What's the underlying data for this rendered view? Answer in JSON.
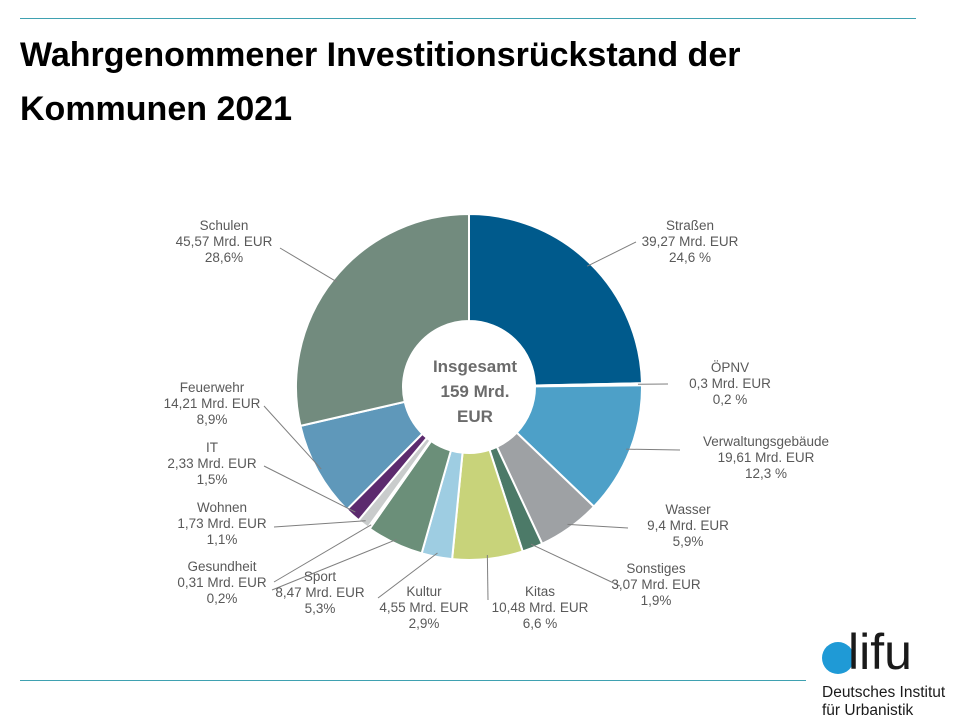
{
  "title": "Wahrgenommener Investitionsrückstand der Kommunen 2021",
  "colors": {
    "rule": "#3fa1b1",
    "leader": "#7f7f7f",
    "logo_dot": "#1f9ad6"
  },
  "chart_data": {
    "type": "pie",
    "donut": true,
    "center_label": [
      "Insgesamt",
      "159 Mrd.",
      "EUR"
    ],
    "slices": [
      {
        "name": "Straßen",
        "value": 39.27,
        "value_label": "39,27 Mrd. EUR",
        "percent_label": "24,6 %",
        "color": "#005a8c"
      },
      {
        "name": "ÖPNV",
        "value": 0.3,
        "value_label": "0,3 Mrd. EUR",
        "percent_label": "0,2 %",
        "color": "#4b8fb5"
      },
      {
        "name": "Verwaltungsgebäude",
        "value": 19.61,
        "value_label": "19,61 Mrd. EUR",
        "percent_label": "12,3 %",
        "color": "#4da0c8"
      },
      {
        "name": "Wasser",
        "value": 9.4,
        "value_label": "9,4 Mrd. EUR",
        "percent_label": "5,9%",
        "color": "#9ea1a4"
      },
      {
        "name": "Sonstiges",
        "value": 3.07,
        "value_label": "3,07 Mrd. EUR",
        "percent_label": "1,9%",
        "color": "#4c7a68"
      },
      {
        "name": "Kitas",
        "value": 10.48,
        "value_label": "10,48 Mrd. EUR",
        "percent_label": "6,6 %",
        "color": "#c8d37a"
      },
      {
        "name": "Kultur",
        "value": 4.55,
        "value_label": "4,55 Mrd. EUR",
        "percent_label": "2,9%",
        "color": "#9ecde2"
      },
      {
        "name": "Sport",
        "value": 8.47,
        "value_label": "8,47 Mrd. EUR",
        "percent_label": "5,3%",
        "color": "#6b8f79"
      },
      {
        "name": "Gesundheit",
        "value": 0.31,
        "value_label": "0,31 Mrd. EUR",
        "percent_label": "0,2%",
        "color": "#bfbfbf"
      },
      {
        "name": "Wohnen",
        "value": 1.73,
        "value_label": "1,73  Mrd. EUR",
        "percent_label": "1,1%",
        "color": "#c9cccc"
      },
      {
        "name": "IT",
        "value": 2.33,
        "value_label": "2,33 Mrd. EUR",
        "percent_label": "1,5%",
        "color": "#5c2a6e"
      },
      {
        "name": "Feuerwehr",
        "value": 14.21,
        "value_label": "14,21 Mrd. EUR",
        "percent_label": "8,9%",
        "color": "#5f98ba"
      },
      {
        "name": "Schulen",
        "value": 45.57,
        "value_label": "45,57 Mrd. EUR",
        "percent_label": "28,6%",
        "color": "#728b7e"
      }
    ]
  },
  "logo": {
    "word": "lifu",
    "line1": "Deutsches Institut",
    "line2": "für Urbanistik"
  }
}
